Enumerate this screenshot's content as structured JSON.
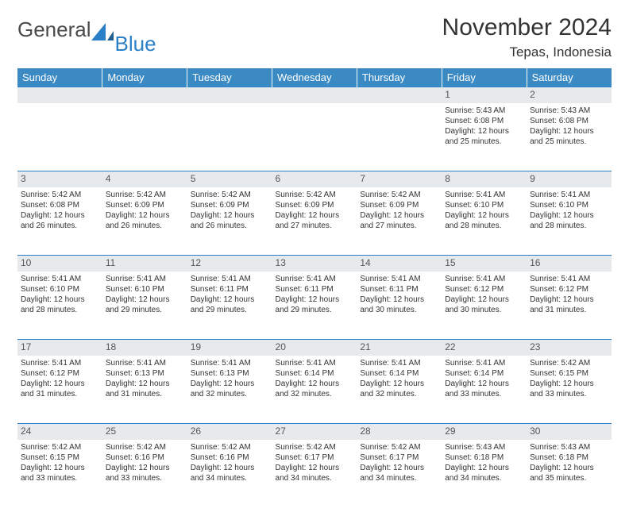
{
  "brand": {
    "general": "General",
    "blue": "Blue"
  },
  "title": "November 2024",
  "location": "Tepas, Indonesia",
  "colors": {
    "header_bg": "#3b8ac4",
    "header_text": "#ffffff",
    "rule": "#2a7fc9",
    "daynum_bg": "#e7eaec",
    "text": "#333333",
    "logo_gray": "#4a4a4a",
    "logo_blue": "#2a7fc9"
  },
  "weekdays": [
    "Sunday",
    "Monday",
    "Tuesday",
    "Wednesday",
    "Thursday",
    "Friday",
    "Saturday"
  ],
  "weeks": [
    [
      null,
      null,
      null,
      null,
      null,
      {
        "n": "1",
        "sr": "5:43 AM",
        "ss": "6:08 PM",
        "dl": "12 hours and 25 minutes."
      },
      {
        "n": "2",
        "sr": "5:43 AM",
        "ss": "6:08 PM",
        "dl": "12 hours and 25 minutes."
      }
    ],
    [
      {
        "n": "3",
        "sr": "5:42 AM",
        "ss": "6:08 PM",
        "dl": "12 hours and 26 minutes."
      },
      {
        "n": "4",
        "sr": "5:42 AM",
        "ss": "6:09 PM",
        "dl": "12 hours and 26 minutes."
      },
      {
        "n": "5",
        "sr": "5:42 AM",
        "ss": "6:09 PM",
        "dl": "12 hours and 26 minutes."
      },
      {
        "n": "6",
        "sr": "5:42 AM",
        "ss": "6:09 PM",
        "dl": "12 hours and 27 minutes."
      },
      {
        "n": "7",
        "sr": "5:42 AM",
        "ss": "6:09 PM",
        "dl": "12 hours and 27 minutes."
      },
      {
        "n": "8",
        "sr": "5:41 AM",
        "ss": "6:10 PM",
        "dl": "12 hours and 28 minutes."
      },
      {
        "n": "9",
        "sr": "5:41 AM",
        "ss": "6:10 PM",
        "dl": "12 hours and 28 minutes."
      }
    ],
    [
      {
        "n": "10",
        "sr": "5:41 AM",
        "ss": "6:10 PM",
        "dl": "12 hours and 28 minutes."
      },
      {
        "n": "11",
        "sr": "5:41 AM",
        "ss": "6:10 PM",
        "dl": "12 hours and 29 minutes."
      },
      {
        "n": "12",
        "sr": "5:41 AM",
        "ss": "6:11 PM",
        "dl": "12 hours and 29 minutes."
      },
      {
        "n": "13",
        "sr": "5:41 AM",
        "ss": "6:11 PM",
        "dl": "12 hours and 29 minutes."
      },
      {
        "n": "14",
        "sr": "5:41 AM",
        "ss": "6:11 PM",
        "dl": "12 hours and 30 minutes."
      },
      {
        "n": "15",
        "sr": "5:41 AM",
        "ss": "6:12 PM",
        "dl": "12 hours and 30 minutes."
      },
      {
        "n": "16",
        "sr": "5:41 AM",
        "ss": "6:12 PM",
        "dl": "12 hours and 31 minutes."
      }
    ],
    [
      {
        "n": "17",
        "sr": "5:41 AM",
        "ss": "6:12 PM",
        "dl": "12 hours and 31 minutes."
      },
      {
        "n": "18",
        "sr": "5:41 AM",
        "ss": "6:13 PM",
        "dl": "12 hours and 31 minutes."
      },
      {
        "n": "19",
        "sr": "5:41 AM",
        "ss": "6:13 PM",
        "dl": "12 hours and 32 minutes."
      },
      {
        "n": "20",
        "sr": "5:41 AM",
        "ss": "6:14 PM",
        "dl": "12 hours and 32 minutes."
      },
      {
        "n": "21",
        "sr": "5:41 AM",
        "ss": "6:14 PM",
        "dl": "12 hours and 32 minutes."
      },
      {
        "n": "22",
        "sr": "5:41 AM",
        "ss": "6:14 PM",
        "dl": "12 hours and 33 minutes."
      },
      {
        "n": "23",
        "sr": "5:42 AM",
        "ss": "6:15 PM",
        "dl": "12 hours and 33 minutes."
      }
    ],
    [
      {
        "n": "24",
        "sr": "5:42 AM",
        "ss": "6:15 PM",
        "dl": "12 hours and 33 minutes."
      },
      {
        "n": "25",
        "sr": "5:42 AM",
        "ss": "6:16 PM",
        "dl": "12 hours and 33 minutes."
      },
      {
        "n": "26",
        "sr": "5:42 AM",
        "ss": "6:16 PM",
        "dl": "12 hours and 34 minutes."
      },
      {
        "n": "27",
        "sr": "5:42 AM",
        "ss": "6:17 PM",
        "dl": "12 hours and 34 minutes."
      },
      {
        "n": "28",
        "sr": "5:42 AM",
        "ss": "6:17 PM",
        "dl": "12 hours and 34 minutes."
      },
      {
        "n": "29",
        "sr": "5:43 AM",
        "ss": "6:18 PM",
        "dl": "12 hours and 34 minutes."
      },
      {
        "n": "30",
        "sr": "5:43 AM",
        "ss": "6:18 PM",
        "dl": "12 hours and 35 minutes."
      }
    ]
  ],
  "labels": {
    "sunrise": "Sunrise:",
    "sunset": "Sunset:",
    "daylight": "Daylight:"
  }
}
